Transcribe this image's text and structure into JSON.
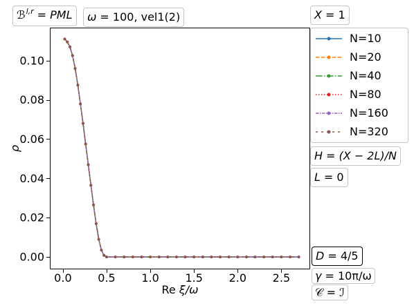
{
  "annotations": {
    "box_B": {
      "symbol": "ℬ",
      "sup": "l,r",
      "rhs": "= PML"
    },
    "box_omega": {
      "symbol": "ω",
      "rhs": "= 100, vel1(2)"
    },
    "box_X": {
      "symbol": "X",
      "rhs": "= 1"
    },
    "box_H": {
      "symbol": "H",
      "rhs": "= (X − 2L)/N"
    },
    "box_L": {
      "symbol": "L",
      "rhs": "= 0"
    },
    "box_D": {
      "symbol": "D",
      "rhs": "= 4/5"
    },
    "box_gamma": {
      "symbol": "γ",
      "rhs": "= 10π/ω"
    },
    "box_C": {
      "symbol": "𝒞",
      "rhs": "= ℐ"
    }
  },
  "chart_data": {
    "type": "line",
    "xlabel": "Re ξ/ω",
    "ylabel": "ρ",
    "xlim": [
      -0.15,
      2.83
    ],
    "ylim": [
      -0.0063,
      0.1168
    ],
    "xticks": [
      0,
      0.5,
      1.0,
      1.5,
      2.0,
      2.5
    ],
    "xticklabels": [
      "0.0",
      "0.5",
      "1.0",
      "1.5",
      "2.0",
      "2.5"
    ],
    "yticks": [
      0,
      0.02,
      0.04,
      0.06,
      0.08,
      0.1
    ],
    "yticklabels": [
      "0.00",
      "0.02",
      "0.04",
      "0.06",
      "0.08",
      "0.10"
    ],
    "grid": false,
    "legend_placement": "outside-right",
    "x": [
      0.02,
      0.05,
      0.08,
      0.11,
      0.14,
      0.17,
      0.2,
      0.23,
      0.26,
      0.29,
      0.32,
      0.35,
      0.38,
      0.41,
      0.44,
      0.47,
      0.5,
      0.6,
      0.7,
      0.8,
      0.9,
      1.0,
      1.1,
      1.2,
      1.3,
      1.4,
      1.5,
      1.6,
      1.7,
      1.8,
      1.9,
      2.0,
      2.1,
      2.2,
      2.3,
      2.4,
      2.5,
      2.6,
      2.7
    ],
    "series": [
      {
        "name": "N=10",
        "color": "#1f77b4",
        "linestyle": "solid",
        "marker": "dot",
        "values": [
          0.111,
          0.1095,
          0.107,
          0.1025,
          0.096,
          0.0875,
          0.078,
          0.068,
          0.0575,
          0.047,
          0.0365,
          0.0265,
          0.017,
          0.009,
          0.0035,
          0.0008,
          0,
          0,
          0,
          0,
          0,
          0,
          0,
          0,
          0,
          0,
          0,
          0,
          0,
          0,
          0,
          0,
          0,
          0,
          0,
          0,
          0,
          0,
          0
        ]
      },
      {
        "name": "N=20",
        "color": "#ff7f0e",
        "linestyle": "dashed",
        "marker": "dot",
        "values": [
          0.111,
          0.1095,
          0.107,
          0.1025,
          0.096,
          0.0875,
          0.078,
          0.068,
          0.0575,
          0.047,
          0.0365,
          0.0265,
          0.017,
          0.009,
          0.0035,
          0.0008,
          0,
          0,
          0,
          0,
          0,
          0,
          0,
          0,
          0,
          0,
          0,
          0,
          0,
          0,
          0,
          0,
          0,
          0,
          0,
          0,
          0,
          0,
          0
        ]
      },
      {
        "name": "N=40",
        "color": "#2ca02c",
        "linestyle": "dashdot",
        "marker": "dot",
        "values": [
          0.111,
          0.1095,
          0.107,
          0.1025,
          0.096,
          0.0875,
          0.078,
          0.068,
          0.0575,
          0.047,
          0.0365,
          0.0265,
          0.017,
          0.009,
          0.0035,
          0.0008,
          0,
          0,
          0,
          0,
          0,
          0,
          0,
          0,
          0,
          0,
          0,
          0,
          0,
          0,
          0,
          0,
          0,
          0,
          0,
          0,
          0,
          0,
          0
        ]
      },
      {
        "name": "N=80",
        "color": "#d62728",
        "linestyle": "dotted",
        "marker": "dot",
        "values": [
          0.111,
          0.1095,
          0.107,
          0.1025,
          0.096,
          0.0875,
          0.078,
          0.068,
          0.0575,
          0.047,
          0.0365,
          0.0265,
          0.017,
          0.009,
          0.0035,
          0.0008,
          0,
          0,
          0,
          0,
          0,
          0,
          0,
          0,
          0,
          0,
          0,
          0,
          0,
          0,
          0,
          0,
          0,
          0,
          0,
          0,
          0,
          0,
          0
        ]
      },
      {
        "name": "N=160",
        "color": "#9467bd",
        "linestyle": "densely-dashdot",
        "marker": "dot",
        "values": [
          0.111,
          0.1095,
          0.107,
          0.1025,
          0.096,
          0.0875,
          0.078,
          0.068,
          0.0575,
          0.047,
          0.0365,
          0.0265,
          0.017,
          0.009,
          0.0035,
          0.0008,
          0,
          0,
          0,
          0,
          0,
          0,
          0,
          0,
          0,
          0,
          0,
          0,
          0,
          0,
          0,
          0,
          0,
          0,
          0,
          0,
          0,
          0,
          0
        ]
      },
      {
        "name": "N=320",
        "color": "#8c564b",
        "linestyle": "loosely-dashed",
        "marker": "dot",
        "values": [
          0.111,
          0.1095,
          0.107,
          0.1025,
          0.096,
          0.0875,
          0.078,
          0.068,
          0.0575,
          0.047,
          0.0365,
          0.0265,
          0.017,
          0.009,
          0.0035,
          0.0008,
          0,
          0,
          0,
          0,
          0,
          0,
          0,
          0,
          0,
          0,
          0,
          0,
          0,
          0,
          0,
          0,
          0,
          0,
          0,
          0,
          0,
          0,
          0
        ]
      }
    ]
  }
}
